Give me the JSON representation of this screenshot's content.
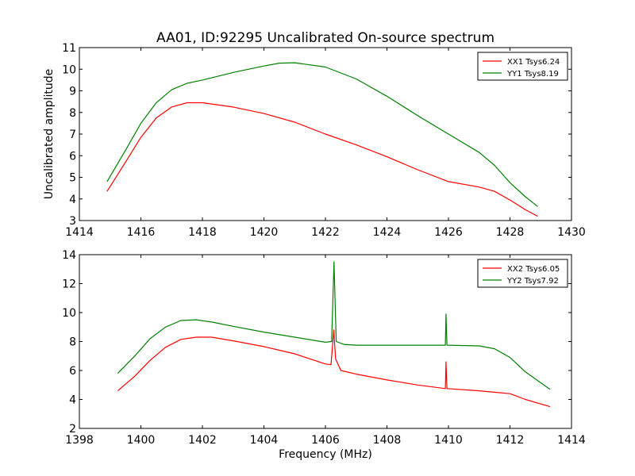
{
  "title": "AA01, ID:92295 Uncalibrated On-source spectrum",
  "ylabel": "Uncalibrated amplitude",
  "xlabel": "Frequency (MHz)",
  "colors": {
    "XX": "#ff0000",
    "YY": "#008000"
  },
  "chart_data": [
    {
      "type": "line",
      "xlim": [
        1414,
        1430
      ],
      "ylim": [
        3,
        11
      ],
      "xticks": [
        "1414",
        "1416",
        "1418",
        "1420",
        "1422",
        "1424",
        "1426",
        "1428",
        "1430"
      ],
      "yticks": [
        "3",
        "4",
        "5",
        "6",
        "7",
        "8",
        "9",
        "10",
        "11"
      ],
      "legend_position": "top-right",
      "series": [
        {
          "name": "XX1 Tsys6.24",
          "color": "#ff0000",
          "points": [
            [
              1414.9,
              4.35
            ],
            [
              1415.5,
              5.7
            ],
            [
              1416.0,
              6.85
            ],
            [
              1416.5,
              7.75
            ],
            [
              1417.0,
              8.25
            ],
            [
              1417.5,
              8.45
            ],
            [
              1418.0,
              8.45
            ],
            [
              1419.0,
              8.25
            ],
            [
              1420.0,
              7.95
            ],
            [
              1421.0,
              7.55
            ],
            [
              1422.0,
              7.0
            ],
            [
              1423.0,
              6.5
            ],
            [
              1424.0,
              5.95
            ],
            [
              1425.0,
              5.35
            ],
            [
              1426.0,
              4.8
            ],
            [
              1427.0,
              4.55
            ],
            [
              1427.5,
              4.35
            ],
            [
              1428.0,
              3.95
            ],
            [
              1428.5,
              3.5
            ],
            [
              1428.9,
              3.2
            ]
          ]
        },
        {
          "name": "YY1 Tsys8.19",
          "color": "#008000",
          "points": [
            [
              1414.9,
              4.8
            ],
            [
              1415.5,
              6.25
            ],
            [
              1416.0,
              7.5
            ],
            [
              1416.5,
              8.45
            ],
            [
              1417.0,
              9.05
            ],
            [
              1417.5,
              9.35
            ],
            [
              1418.0,
              9.5
            ],
            [
              1419.0,
              9.85
            ],
            [
              1420.0,
              10.15
            ],
            [
              1420.5,
              10.28
            ],
            [
              1421.0,
              10.3
            ],
            [
              1422.0,
              10.1
            ],
            [
              1423.0,
              9.55
            ],
            [
              1424.0,
              8.75
            ],
            [
              1425.0,
              7.85
            ],
            [
              1426.0,
              7.0
            ],
            [
              1427.0,
              6.15
            ],
            [
              1427.5,
              5.55
            ],
            [
              1428.0,
              4.75
            ],
            [
              1428.5,
              4.1
            ],
            [
              1428.9,
              3.65
            ]
          ]
        }
      ]
    },
    {
      "type": "line",
      "xlim": [
        1398,
        1414
      ],
      "ylim": [
        2,
        14
      ],
      "xticks": [
        "1398",
        "1400",
        "1402",
        "1404",
        "1406",
        "1408",
        "1410",
        "1412",
        "1414"
      ],
      "yticks": [
        "2",
        "4",
        "6",
        "8",
        "10",
        "12",
        "14"
      ],
      "legend_position": "top-right",
      "series": [
        {
          "name": "XX2 Tsys6.05",
          "color": "#ff0000",
          "points": [
            [
              1399.25,
              4.6
            ],
            [
              1399.8,
              5.6
            ],
            [
              1400.3,
              6.7
            ],
            [
              1400.8,
              7.6
            ],
            [
              1401.3,
              8.15
            ],
            [
              1401.8,
              8.3
            ],
            [
              1402.3,
              8.3
            ],
            [
              1403.0,
              8.05
            ],
            [
              1404.0,
              7.65
            ],
            [
              1405.0,
              7.15
            ],
            [
              1406.0,
              6.45
            ],
            [
              1406.18,
              6.4
            ],
            [
              1406.27,
              8.8
            ],
            [
              1406.33,
              6.8
            ],
            [
              1406.5,
              6.0
            ],
            [
              1407.0,
              5.75
            ],
            [
              1408.0,
              5.35
            ],
            [
              1409.0,
              5.0
            ],
            [
              1409.9,
              4.75
            ],
            [
              1409.92,
              6.6
            ],
            [
              1409.95,
              4.75
            ],
            [
              1411.0,
              4.6
            ],
            [
              1412.0,
              4.4
            ],
            [
              1412.5,
              4.0
            ],
            [
              1413.3,
              3.5
            ]
          ]
        },
        {
          "name": "YY2 Tsys7.92",
          "color": "#008000",
          "points": [
            [
              1399.25,
              5.8
            ],
            [
              1399.8,
              7.0
            ],
            [
              1400.3,
              8.2
            ],
            [
              1400.8,
              9.0
            ],
            [
              1401.3,
              9.45
            ],
            [
              1401.8,
              9.5
            ],
            [
              1402.3,
              9.35
            ],
            [
              1403.0,
              9.05
            ],
            [
              1404.0,
              8.65
            ],
            [
              1405.0,
              8.3
            ],
            [
              1406.0,
              7.95
            ],
            [
              1406.2,
              8.0
            ],
            [
              1406.28,
              13.5
            ],
            [
              1406.35,
              8.0
            ],
            [
              1406.6,
              7.8
            ],
            [
              1407.0,
              7.75
            ],
            [
              1408.0,
              7.75
            ],
            [
              1409.0,
              7.75
            ],
            [
              1409.9,
              7.75
            ],
            [
              1409.92,
              9.9
            ],
            [
              1409.95,
              7.75
            ],
            [
              1411.0,
              7.7
            ],
            [
              1411.5,
              7.5
            ],
            [
              1412.0,
              6.9
            ],
            [
              1412.5,
              5.9
            ],
            [
              1413.3,
              4.7
            ]
          ]
        }
      ]
    }
  ]
}
